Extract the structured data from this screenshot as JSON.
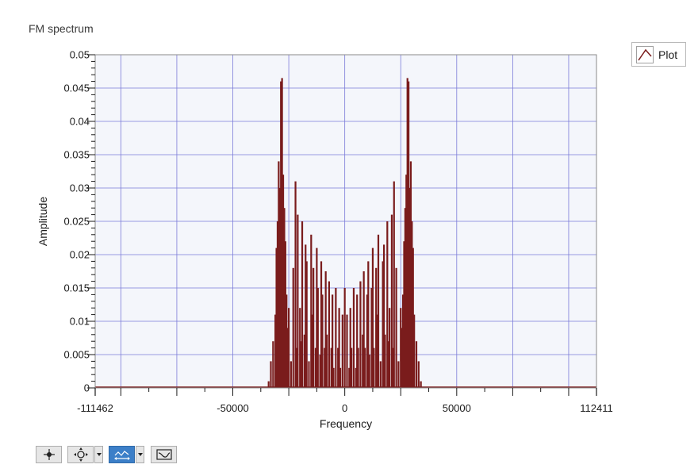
{
  "window": {
    "title": "FM spectrum"
  },
  "legend": {
    "items": [
      {
        "label": "Plot",
        "icon": "line-plot-icon"
      }
    ]
  },
  "toolbar": {
    "buttons": [
      {
        "name": "cursor-tool-button",
        "icon": "crosshair-move-icon",
        "active": false,
        "has_dropdown": false
      },
      {
        "name": "zoom-tool-button",
        "icon": "zoom-icon",
        "active": false,
        "has_dropdown": true
      },
      {
        "name": "pan-tool-button",
        "icon": "pan-icon",
        "active": true,
        "has_dropdown": true
      },
      {
        "name": "autoscale-button",
        "icon": "autoscale-icon",
        "active": false,
        "has_dropdown": false
      }
    ]
  },
  "chart_data": {
    "type": "bar",
    "title": "FM spectrum",
    "xlabel": "Frequency",
    "ylabel": "Amplitude",
    "xlim": [
      -111462,
      112411
    ],
    "ylim": [
      0,
      0.05
    ],
    "x_ticks": [
      -111462,
      -50000,
      0,
      50000,
      112411
    ],
    "x_tick_labels": [
      "-111462",
      "-50000",
      "0",
      "50000",
      "112411"
    ],
    "y_ticks": [
      0,
      0.005,
      0.01,
      0.015,
      0.02,
      0.025,
      0.03,
      0.035,
      0.04,
      0.045,
      0.05
    ],
    "y_tick_labels": [
      "0",
      "0.005",
      "0.01",
      "0.015",
      "0.02",
      "0.025",
      "0.03",
      "0.035",
      "0.04",
      "0.045",
      "0.05"
    ],
    "grid": true,
    "legend_position": "top-right, outside plot",
    "colors": {
      "series": "#7a1c1c",
      "plot_background": "#f4f6fb",
      "grid": "#7b7bd8"
    },
    "series": [
      {
        "name": "Plot",
        "x": [
          -34000,
          -33000,
          -32000,
          -31000,
          -30500,
          -30000,
          -29500,
          -29000,
          -28500,
          -28000,
          -27500,
          -27000,
          -26500,
          -26000,
          -25500,
          -25000,
          -24000,
          -23000,
          -22000,
          -21500,
          -21000,
          -20000,
          -19500,
          -19000,
          -18000,
          -17500,
          -17000,
          -16000,
          -15000,
          -14500,
          -14000,
          -13000,
          -12500,
          -12000,
          -11000,
          -10500,
          -10000,
          -9000,
          -8500,
          -8000,
          -7000,
          -6000,
          -5500,
          -5000,
          -4000,
          -3000,
          -2500,
          -2000,
          -1000,
          0,
          1000,
          2000,
          2500,
          3000,
          4000,
          5000,
          5500,
          6000,
          7000,
          8000,
          8500,
          9000,
          10000,
          10500,
          11000,
          12000,
          12500,
          13000,
          14000,
          14500,
          15000,
          16000,
          17000,
          17500,
          18000,
          19000,
          19500,
          20000,
          21000,
          21500,
          22000,
          23000,
          24000,
          25000,
          25500,
          26000,
          26500,
          27000,
          27500,
          28000,
          28500,
          29000,
          29500,
          30000,
          30500,
          31000,
          32000,
          33000,
          34000
        ],
        "values": [
          0.001,
          0.004,
          0.007,
          0.011,
          0.021,
          0.025,
          0.034,
          0.03,
          0.046,
          0.0465,
          0.032,
          0.027,
          0.022,
          0.014,
          0.009,
          0.012,
          0.004,
          0.018,
          0.031,
          0.006,
          0.026,
          0.012,
          0.007,
          0.025,
          0.008,
          0.0215,
          0.019,
          0.004,
          0.023,
          0.011,
          0.018,
          0.006,
          0.021,
          0.015,
          0.005,
          0.019,
          0.014,
          0.006,
          0.0175,
          0.008,
          0.016,
          0.006,
          0.014,
          0.003,
          0.015,
          0.006,
          0.012,
          0.003,
          0.011,
          0.015,
          0.011,
          0.003,
          0.012,
          0.006,
          0.015,
          0.003,
          0.014,
          0.006,
          0.016,
          0.008,
          0.0175,
          0.006,
          0.014,
          0.019,
          0.005,
          0.015,
          0.021,
          0.006,
          0.018,
          0.011,
          0.023,
          0.004,
          0.019,
          0.0215,
          0.008,
          0.025,
          0.007,
          0.012,
          0.026,
          0.006,
          0.031,
          0.018,
          0.004,
          0.012,
          0.009,
          0.014,
          0.022,
          0.027,
          0.032,
          0.0465,
          0.046,
          0.03,
          0.034,
          0.025,
          0.021,
          0.011,
          0.007,
          0.004,
          0.001
        ]
      }
    ]
  }
}
